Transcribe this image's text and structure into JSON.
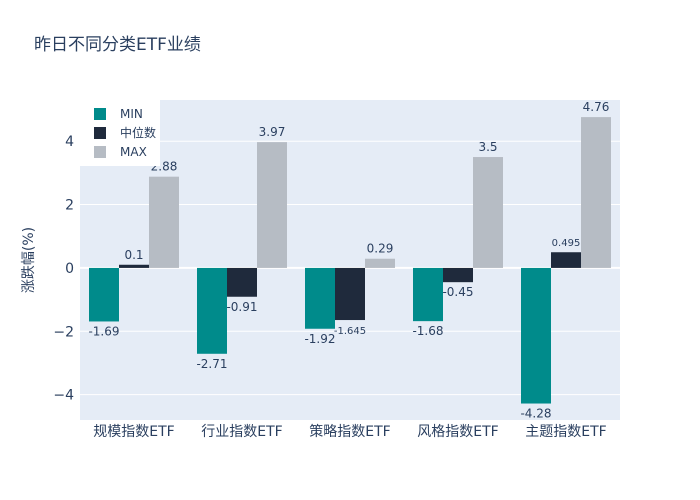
{
  "chart_data": {
    "type": "bar",
    "title": "昨日不同分类ETF业绩",
    "xlabel": "",
    "ylabel": "涨跌幅(%)",
    "ylim": [
      -4.8,
      5.3
    ],
    "yticks": [
      -4,
      -2,
      0,
      2,
      4
    ],
    "ytick_labels": [
      "−4",
      "−2",
      "0",
      "2",
      "4"
    ],
    "grid": true,
    "legend_position": "top-left",
    "categories": [
      "规模指数ETF",
      "行业指数ETF",
      "策略指数ETF",
      "风格指数ETF",
      "主题指数ETF"
    ],
    "series": [
      {
        "name": "MIN",
        "color": "#008b8b",
        "values": [
          -1.69,
          -2.71,
          -1.92,
          -1.68,
          -4.28
        ],
        "labels": [
          "-1.69",
          "-2.71",
          "-1.92",
          "-1.68",
          "-4.28"
        ]
      },
      {
        "name": "中位数",
        "color": "#1f2a3c",
        "values": [
          0.1,
          -0.91,
          -1.645,
          -0.45,
          0.495
        ],
        "labels": [
          "0.1",
          "-0.91",
          "-1.645",
          "-0.45",
          "0.495"
        ]
      },
      {
        "name": "MAX",
        "color": "#b6bcc4",
        "values": [
          2.88,
          3.97,
          0.29,
          3.5,
          4.76
        ],
        "labels": [
          "2.88",
          "3.97",
          "0.29",
          "3.5",
          "4.76"
        ]
      }
    ]
  }
}
